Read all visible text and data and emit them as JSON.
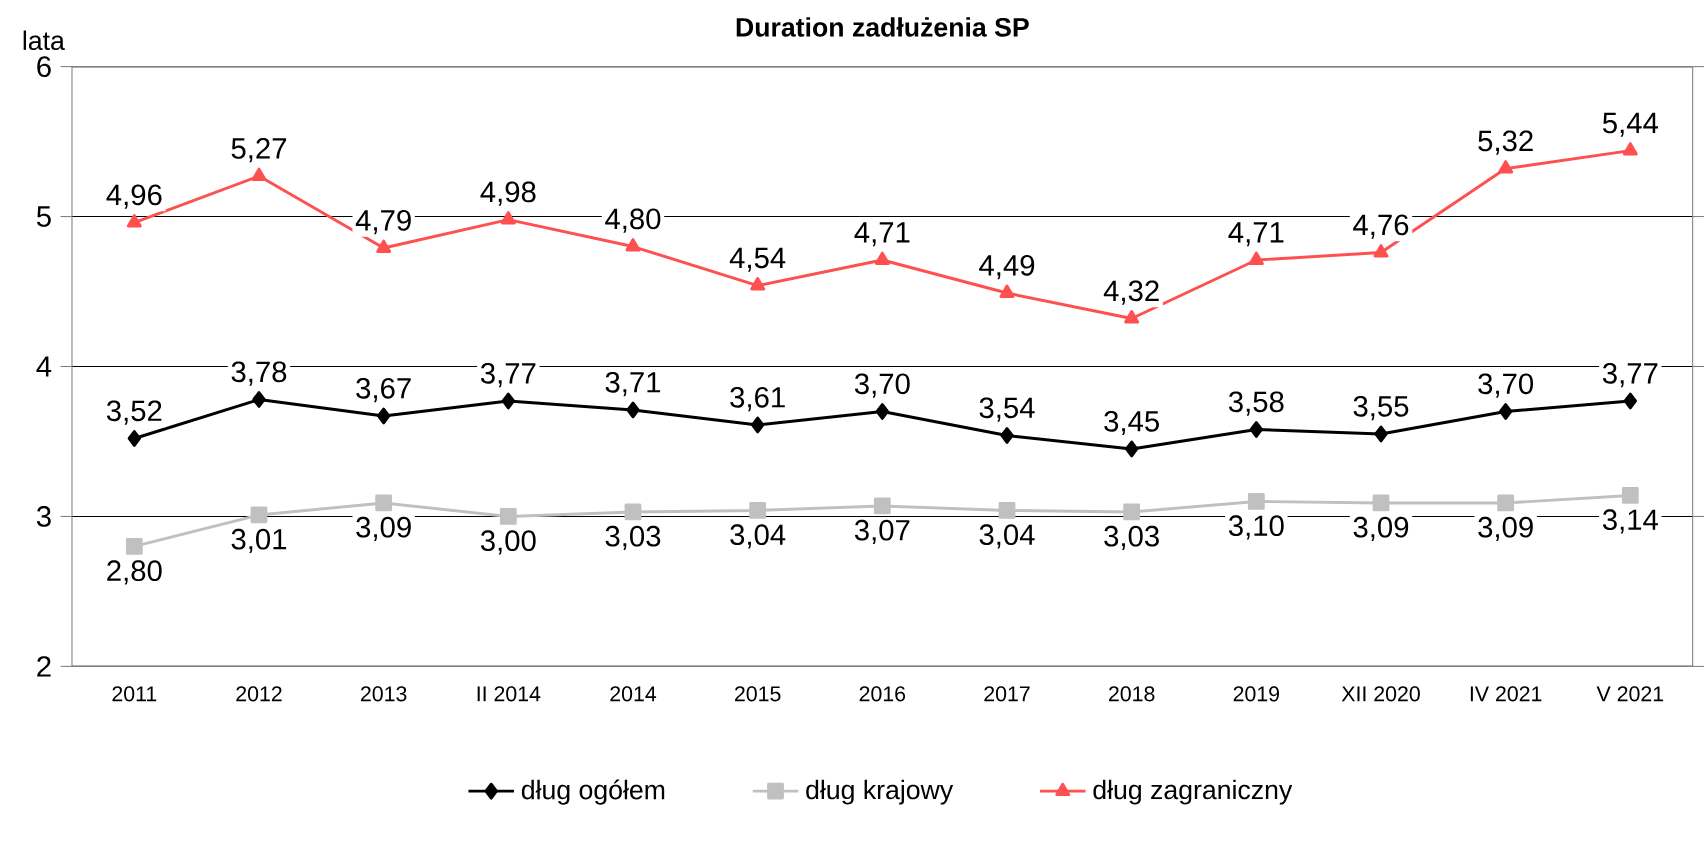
{
  "chart_data": {
    "type": "line",
    "title": "Duration zadłużenia SP",
    "ylabel": "lata",
    "categories": [
      "2011",
      "2012",
      "2013",
      "II 2014",
      "2014",
      "2015",
      "2016",
      "2017",
      "2018",
      "2019",
      "XII 2020",
      "IV 2021",
      "V 2021"
    ],
    "series": [
      {
        "name": "dług ogółem",
        "color": "#000000",
        "marker": "diamond",
        "values": [
          3.52,
          3.78,
          3.67,
          3.77,
          3.71,
          3.61,
          3.7,
          3.54,
          3.45,
          3.58,
          3.55,
          3.7,
          3.77
        ],
        "value_labels": [
          "3,52",
          "3,78",
          "3,67",
          "3,77",
          "3,71",
          "3,61",
          "3,70",
          "3,54",
          "3,45",
          "3,58",
          "3,55",
          "3,70",
          "3,77"
        ]
      },
      {
        "name": "dług krajowy",
        "color": "#c0c0c0",
        "marker": "square",
        "values": [
          2.8,
          3.01,
          3.09,
          3.0,
          3.03,
          3.04,
          3.07,
          3.04,
          3.03,
          3.1,
          3.09,
          3.09,
          3.14
        ],
        "value_labels": [
          "2,80",
          "3,01",
          "3,09",
          "3,00",
          "3,03",
          "3,04",
          "3,07",
          "3,04",
          "3,03",
          "3,10",
          "3,09",
          "3,09",
          "3,14"
        ]
      },
      {
        "name": "dług zagraniczny",
        "color": "#ff5050",
        "marker": "triangle",
        "values": [
          4.96,
          5.27,
          4.79,
          4.98,
          4.8,
          4.54,
          4.71,
          4.49,
          4.32,
          4.71,
          4.76,
          5.32,
          5.44
        ],
        "value_labels": [
          "4,96",
          "5,27",
          "4,79",
          "4,98",
          "4,80",
          "4,54",
          "4,71",
          "4,49",
          "4,32",
          "4,71",
          "4,76",
          "5,32",
          "5,44"
        ]
      }
    ],
    "ylim": [
      2,
      6
    ],
    "yticks": [
      2,
      3,
      4,
      5,
      6
    ],
    "grid": "y",
    "legend": "bottom",
    "line_style": "solid"
  }
}
